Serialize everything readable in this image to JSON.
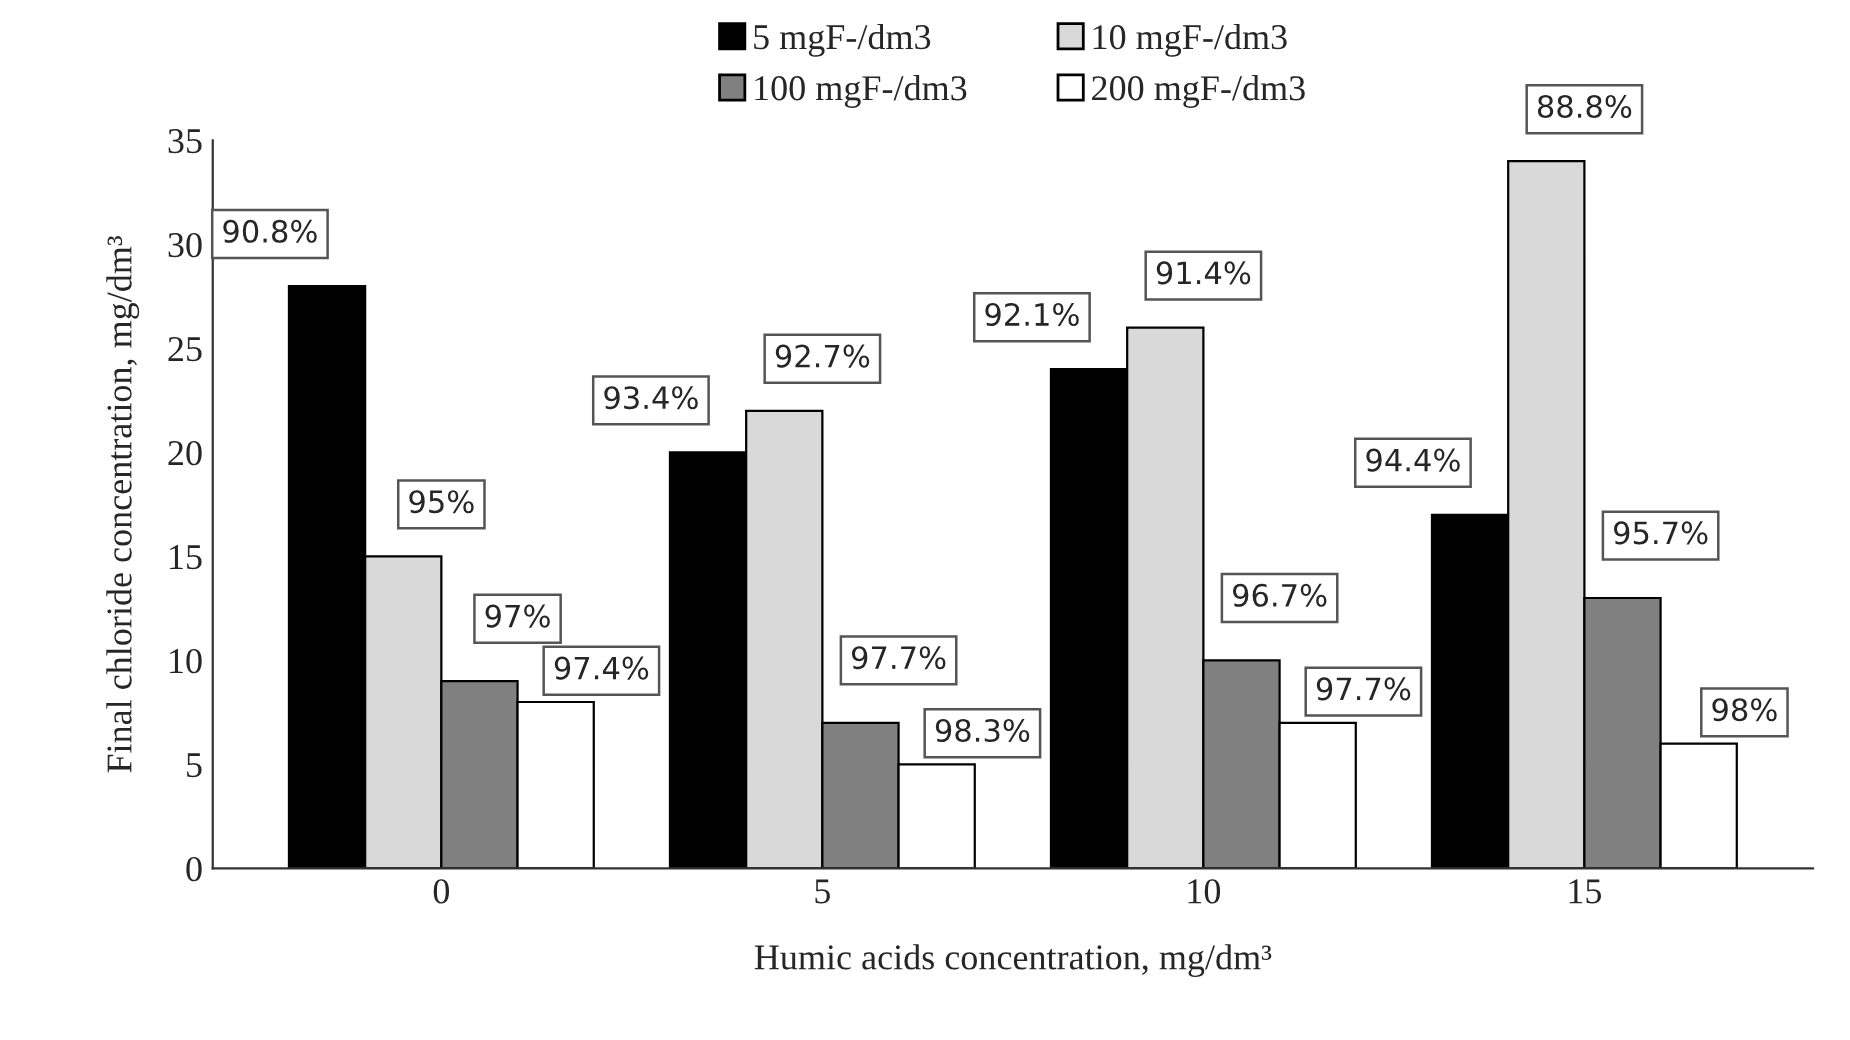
{
  "chart_data": {
    "type": "bar",
    "xlabel": "Humic acids concentration, mg/dm³",
    "ylabel": "Final chloride concentration, mg/dm³",
    "categories": [
      "0",
      "5",
      "10",
      "15"
    ],
    "ylim": [
      0,
      35
    ],
    "yticks": [
      0,
      5,
      10,
      15,
      20,
      25,
      30,
      35
    ],
    "grid": false,
    "legend": "top",
    "series": [
      {
        "name": "5 mgF-/dm3",
        "color": "#000000",
        "values": [
          28,
          20,
          24,
          17
        ]
      },
      {
        "name": "10 mgF-/dm3",
        "color": "#d9d9d9",
        "values": [
          15,
          22,
          26,
          34
        ]
      },
      {
        "name": "100 mgF-/dm3",
        "color": "#808080",
        "values": [
          9,
          7,
          10,
          13
        ]
      },
      {
        "name": "200 mgF-/dm3",
        "color": "#ffffff",
        "values": [
          8,
          5,
          7,
          6
        ]
      }
    ],
    "annotations": [
      "90.8%",
      "93.4%",
      "92.1%",
      "94.4%",
      "95%",
      "92.7%",
      "91.4%",
      "88.8%",
      "97%",
      "97.7%",
      "96.7%",
      "95.7%",
      "97.4%",
      "98.3%",
      "97.7%",
      "98%"
    ]
  }
}
